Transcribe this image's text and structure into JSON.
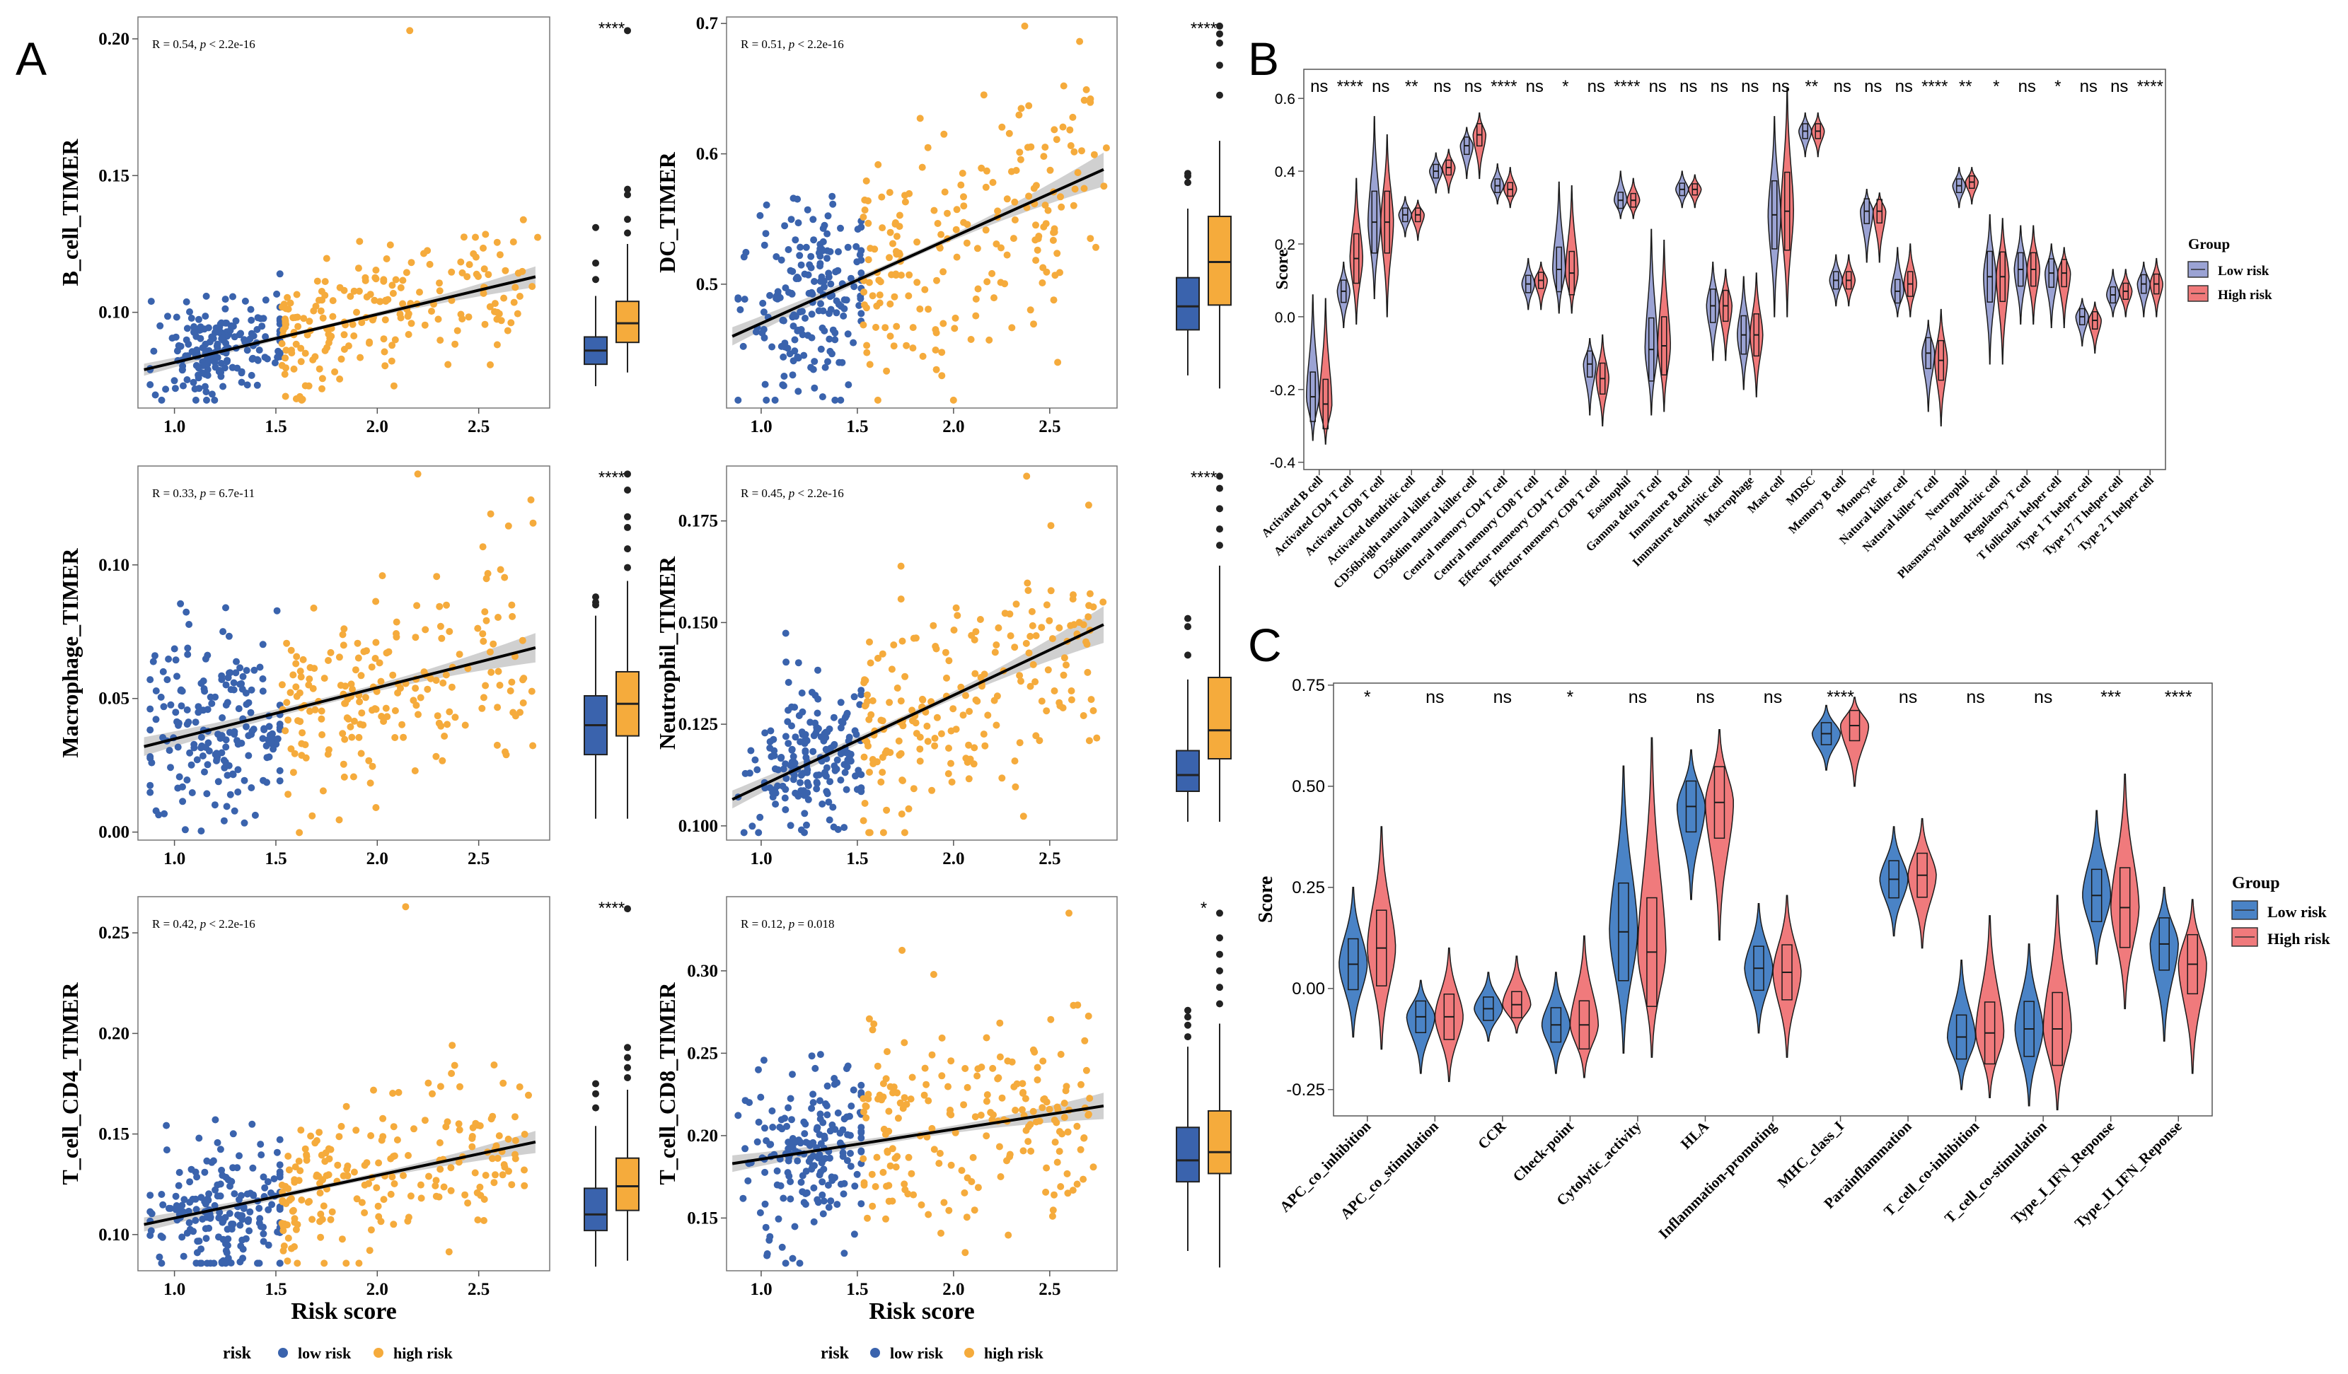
{
  "panel_labels": {
    "A": "A",
    "B": "B",
    "C": "C"
  },
  "colors": {
    "low": "#3a63ad",
    "high": "#f5ab3c",
    "vio_low": "#9ba3d4",
    "vio_high": "#f0797a",
    "c_low": "#4a83c6",
    "c_high": "#f07a7c",
    "ci": "#c8c8c8"
  },
  "chart_data": [
    {
      "id": "A1",
      "type": "scatter",
      "ylabel": "B_cell_TIMER",
      "annotation": {
        "r": "R = 0.54, ",
        "p_label": "p",
        "p_value": " < 2.2e-16"
      },
      "xlim": [
        0.82,
        2.85
      ],
      "ylim": [
        0.065,
        0.208
      ],
      "xticks": [
        1.0,
        1.5,
        2.0,
        2.5
      ],
      "xtick_labels": [
        "1.0",
        "1.5",
        "2.0",
        "2.5"
      ],
      "yticks": [
        0.1,
        0.15,
        0.2
      ],
      "ytick_labels": [
        "0.10",
        "0.15",
        "0.20"
      ],
      "fit": [
        [
          0.85,
          0.079
        ],
        [
          2.78,
          0.113
        ]
      ],
      "ci_halfwidth": [
        0.0022,
        0.0007,
        0.0038
      ],
      "low_center": [
        1.23,
        0.088
      ],
      "low_spread": [
        0.17,
        0.009
      ],
      "high_center": [
        1.95,
        0.098
      ],
      "high_spread": [
        0.27,
        0.011
      ],
      "outlier_high": [
        2.16,
        0.203
      ],
      "box": {
        "sig": "****",
        "low": {
          "min": 0.073,
          "q1": 0.081,
          "median": 0.086,
          "q3": 0.091,
          "max": 0.106,
          "outliers": [
            0.112,
            0.118,
            0.131
          ]
        },
        "high": {
          "min": 0.078,
          "q1": 0.089,
          "median": 0.096,
          "q3": 0.104,
          "max": 0.125,
          "outliers": [
            0.129,
            0.134,
            0.143,
            0.145,
            0.203
          ]
        }
      }
    },
    {
      "id": "A2",
      "type": "scatter",
      "ylabel": "DC_TIMER",
      "annotation": {
        "r": "R = 0.51, ",
        "p_label": "p",
        "p_value": " < 2.2e-16"
      },
      "xlim": [
        0.82,
        2.85
      ],
      "ylim": [
        0.405,
        0.705
      ],
      "xticks": [
        1.0,
        1.5,
        2.0,
        2.5
      ],
      "xtick_labels": [
        "1.0",
        "1.5",
        "2.0",
        "2.5"
      ],
      "yticks": [
        0.5,
        0.6,
        0.7
      ],
      "ytick_labels": [
        "0.5",
        "0.6",
        "0.7"
      ],
      "fit": [
        [
          0.85,
          0.46
        ],
        [
          2.78,
          0.588
        ]
      ],
      "ci_halfwidth": [
        0.007,
        0.002,
        0.013
      ],
      "low_center": [
        1.24,
        0.49
      ],
      "low_spread": [
        0.17,
        0.035
      ],
      "high_center": [
        1.95,
        0.53
      ],
      "high_spread": [
        0.27,
        0.048
      ],
      "outlier_high": [
        2.37,
        0.698
      ],
      "box": {
        "sig": "****",
        "low": {
          "min": 0.43,
          "q1": 0.465,
          "median": 0.483,
          "q3": 0.505,
          "max": 0.558,
          "outliers": [
            0.578,
            0.583,
            0.585
          ]
        },
        "high": {
          "min": 0.42,
          "q1": 0.484,
          "median": 0.517,
          "q3": 0.552,
          "max": 0.61,
          "outliers": [
            0.645,
            0.668,
            0.685,
            0.692,
            0.698
          ]
        }
      }
    },
    {
      "id": "A3",
      "type": "scatter",
      "ylabel": "Macrophage_TIMER",
      "annotation": {
        "r": "R = 0.33, ",
        "p_label": "p",
        "p_value": " = 6.7e-11"
      },
      "xlim": [
        0.82,
        2.85
      ],
      "ylim": [
        -0.003,
        0.137
      ],
      "xticks": [
        1.0,
        1.5,
        2.0,
        2.5
      ],
      "xtick_labels": [
        "1.0",
        "1.5",
        "2.0",
        "2.5"
      ],
      "yticks": [
        0.0,
        0.05,
        0.1
      ],
      "ytick_labels": [
        "0.00",
        "0.05",
        "0.10"
      ],
      "fit": [
        [
          0.85,
          0.032
        ],
        [
          2.78,
          0.069
        ]
      ],
      "ci_halfwidth": [
        0.0035,
        0.0012,
        0.0055
      ],
      "low_center": [
        1.23,
        0.041
      ],
      "low_spread": [
        0.17,
        0.017
      ],
      "high_center": [
        1.95,
        0.049
      ],
      "high_spread": [
        0.27,
        0.019
      ],
      "outlier_high": [
        2.2,
        0.134
      ],
      "box": {
        "sig": "****",
        "low": {
          "min": 0.005,
          "q1": 0.029,
          "median": 0.04,
          "q3": 0.051,
          "max": 0.081,
          "outliers": [
            0.085,
            0.086,
            0.088
          ]
        },
        "high": {
          "min": 0.005,
          "q1": 0.036,
          "median": 0.048,
          "q3": 0.06,
          "max": 0.094,
          "outliers": [
            0.099,
            0.106,
            0.114,
            0.118,
            0.128,
            0.134
          ]
        }
      }
    },
    {
      "id": "A4",
      "type": "scatter",
      "ylabel": "Neutrophil_TIMER",
      "annotation": {
        "r": "R = 0.45, ",
        "p_label": "p",
        "p_value": " < 2.2e-16"
      },
      "xlim": [
        0.82,
        2.85
      ],
      "ylim": [
        0.0965,
        0.1885
      ],
      "xticks": [
        1.0,
        1.5,
        2.0,
        2.5
      ],
      "xtick_labels": [
        "1.0",
        "1.5",
        "2.0",
        "2.5"
      ],
      "yticks": [
        0.1,
        0.125,
        0.15,
        0.175
      ],
      "ytick_labels": [
        "0.100",
        "0.125",
        "0.150",
        "0.175"
      ],
      "fit": [
        [
          0.85,
          0.1065
        ],
        [
          2.78,
          0.1495
        ]
      ],
      "ci_halfwidth": [
        0.0022,
        0.0008,
        0.0045
      ],
      "low_center": [
        1.25,
        0.117
      ],
      "low_spread": [
        0.16,
        0.0085
      ],
      "high_center": [
        1.95,
        0.128
      ],
      "high_spread": [
        0.27,
        0.012
      ],
      "outlier_high": [
        2.38,
        0.186
      ],
      "box": {
        "sig": "****",
        "low": {
          "min": 0.101,
          "q1": 0.1085,
          "median": 0.1125,
          "q3": 0.1185,
          "max": 0.136,
          "outliers": [
            0.142,
            0.149,
            0.151
          ]
        },
        "high": {
          "min": 0.101,
          "q1": 0.1165,
          "median": 0.1235,
          "q3": 0.1365,
          "max": 0.164,
          "outliers": [
            0.169,
            0.173,
            0.178,
            0.183,
            0.186
          ]
        }
      }
    },
    {
      "id": "A5",
      "type": "scatter",
      "ylabel": "T_cell_CD4_TIMER",
      "xlabel": "Risk score",
      "annotation": {
        "r": "R = 0.42, ",
        "p_label": "p",
        "p_value": " < 2.2e-16"
      },
      "xlim": [
        0.82,
        2.85
      ],
      "ylim": [
        0.082,
        0.268
      ],
      "xticks": [
        1.0,
        1.5,
        2.0,
        2.5
      ],
      "xtick_labels": [
        "1.0",
        "1.5",
        "2.0",
        "2.5"
      ],
      "yticks": [
        0.1,
        0.15,
        0.2,
        0.25
      ],
      "ytick_labels": [
        "0.10",
        "0.15",
        "0.20",
        "0.25"
      ],
      "fit": [
        [
          0.85,
          0.105
        ],
        [
          2.78,
          0.146
        ]
      ],
      "ci_halfwidth": [
        0.0035,
        0.0012,
        0.0055
      ],
      "low_center": [
        1.24,
        0.113
      ],
      "low_spread": [
        0.17,
        0.016
      ],
      "high_center": [
        1.95,
        0.128
      ],
      "high_spread": [
        0.27,
        0.02
      ],
      "outlier_high": [
        2.14,
        0.263
      ],
      "box": {
        "sig": "****",
        "low": {
          "min": 0.084,
          "q1": 0.102,
          "median": 0.11,
          "q3": 0.123,
          "max": 0.154,
          "outliers": [
            0.163,
            0.17,
            0.175
          ]
        },
        "high": {
          "min": 0.087,
          "q1": 0.112,
          "median": 0.124,
          "q3": 0.138,
          "max": 0.172,
          "outliers": [
            0.178,
            0.183,
            0.188,
            0.193,
            0.262
          ]
        }
      }
    },
    {
      "id": "A6",
      "type": "scatter",
      "ylabel": "T_cell_CD8_TIMER",
      "xlabel": "Risk score",
      "annotation": {
        "r": "R = 0.12, ",
        "p_label": "p",
        "p_value": " = 0.018"
      },
      "xlim": [
        0.82,
        2.85
      ],
      "ylim": [
        0.118,
        0.345
      ],
      "xticks": [
        1.0,
        1.5,
        2.0,
        2.5
      ],
      "xtick_labels": [
        "1.0",
        "1.5",
        "2.0",
        "2.5"
      ],
      "yticks": [
        0.15,
        0.2,
        0.25,
        0.3
      ],
      "ytick_labels": [
        "0.15",
        "0.20",
        "0.25",
        "0.30"
      ],
      "fit": [
        [
          0.85,
          0.183
        ],
        [
          2.78,
          0.218
        ]
      ],
      "ci_halfwidth": [
        0.005,
        0.002,
        0.008
      ],
      "low_center": [
        1.24,
        0.19
      ],
      "low_spread": [
        0.17,
        0.028
      ],
      "high_center": [
        1.95,
        0.199
      ],
      "high_spread": [
        0.27,
        0.032
      ],
      "outlier_high": [
        2.6,
        0.335
      ],
      "box": {
        "sig": "*",
        "low": {
          "min": 0.13,
          "q1": 0.172,
          "median": 0.185,
          "q3": 0.205,
          "max": 0.254,
          "outliers": [
            0.26,
            0.267,
            0.272,
            0.276
          ]
        },
        "high": {
          "min": 0.12,
          "q1": 0.177,
          "median": 0.19,
          "q3": 0.215,
          "max": 0.268,
          "outliers": [
            0.28,
            0.29,
            0.3,
            0.31,
            0.32,
            0.335
          ]
        }
      }
    },
    {
      "id": "B",
      "type": "violin",
      "ylabel": "Score",
      "ylim": [
        -0.42,
        0.68
      ],
      "yticks": [
        -0.4,
        -0.2,
        0.0,
        0.2,
        0.4,
        0.6
      ],
      "ytick_labels": [
        "-0.4",
        "-0.2",
        "0.0",
        "0.2",
        "0.4",
        "0.6"
      ],
      "categories": [
        "Activated B cell",
        "Activated CD4 T cell",
        "Activated CD8 T cell",
        "Activated dendritic cell",
        "CD56bright natural killer cell",
        "CD56dim natural killer cell",
        "Central memory CD4 T cell",
        "Central memory CD8 T cell",
        "Effector memeory CD4 T cell",
        "Effector memeory CD8 T cell",
        "Eosinophil",
        "Gamma delta T cell",
        "Immature  B cell",
        "Immature dendritic cell",
        "Macrophage",
        "Mast cell",
        "MDSC",
        "Memory B cell",
        "Monocyte",
        "Natural killer cell",
        "Natural killer T cell",
        "Neutrophil",
        "Plasmacytoid dendritic cell",
        "Regulatory T cell",
        "T follicular helper cell",
        "Type 1 T helper cell",
        "Type 17 T helper cell",
        "Type 2 T helper cell"
      ],
      "significance": [
        "ns",
        "****",
        "ns",
        "**",
        "ns",
        "ns",
        "****",
        "ns",
        "*",
        "ns",
        "****",
        "ns",
        "ns",
        "ns",
        "ns",
        "ns",
        "**",
        "ns",
        "ns",
        "ns",
        "****",
        "**",
        "*",
        "ns",
        "*",
        "ns",
        "ns",
        "****"
      ],
      "low_median": [
        -0.22,
        0.07,
        0.26,
        0.28,
        0.4,
        0.47,
        0.36,
        0.09,
        0.13,
        -0.13,
        0.32,
        -0.09,
        0.35,
        0.03,
        -0.05,
        0.28,
        0.51,
        0.1,
        0.29,
        0.07,
        -0.1,
        0.36,
        0.11,
        0.13,
        0.12,
        0.0,
        0.06,
        0.09
      ],
      "high_median": [
        -0.24,
        0.16,
        0.26,
        0.28,
        0.41,
        0.5,
        0.35,
        0.1,
        0.12,
        -0.17,
        0.32,
        -0.08,
        0.35,
        0.03,
        -0.05,
        0.29,
        0.51,
        0.1,
        0.29,
        0.09,
        -0.12,
        0.37,
        0.11,
        0.13,
        0.12,
        -0.01,
        0.07,
        0.09
      ],
      "low_min": [
        -0.34,
        -0.03,
        0.05,
        0.22,
        0.34,
        0.38,
        0.31,
        0.02,
        0.01,
        -0.27,
        0.27,
        -0.27,
        0.3,
        -0.12,
        -0.2,
        0.0,
        0.44,
        0.03,
        0.15,
        0.0,
        -0.26,
        0.3,
        -0.13,
        -0.02,
        -0.03,
        -0.08,
        0.0,
        0.0
      ],
      "low_max": [
        0.06,
        0.15,
        0.55,
        0.33,
        0.45,
        0.52,
        0.42,
        0.16,
        0.37,
        -0.06,
        0.4,
        0.24,
        0.4,
        0.15,
        0.11,
        0.55,
        0.56,
        0.17,
        0.35,
        0.19,
        -0.01,
        0.41,
        0.28,
        0.25,
        0.2,
        0.05,
        0.13,
        0.15
      ],
      "high_min": [
        -0.35,
        -0.02,
        0.0,
        0.21,
        0.34,
        0.38,
        0.3,
        0.02,
        0.01,
        -0.3,
        0.27,
        -0.26,
        0.3,
        -0.12,
        -0.22,
        0.0,
        0.44,
        0.03,
        0.15,
        0.0,
        -0.3,
        0.31,
        -0.13,
        -0.02,
        -0.03,
        -0.1,
        0.0,
        0.0
      ],
      "high_max": [
        0.05,
        0.38,
        0.5,
        0.32,
        0.46,
        0.56,
        0.41,
        0.15,
        0.36,
        -0.05,
        0.38,
        0.21,
        0.39,
        0.13,
        0.12,
        0.63,
        0.56,
        0.17,
        0.34,
        0.2,
        0.02,
        0.41,
        0.27,
        0.25,
        0.19,
        0.04,
        0.13,
        0.16
      ],
      "legend": {
        "title": "Group",
        "low": "Low risk",
        "high": "High risk"
      }
    },
    {
      "id": "C",
      "type": "violin",
      "ylabel": "Score",
      "ylim": [
        -0.315,
        0.755
      ],
      "yticks": [
        -0.25,
        0.0,
        0.25,
        0.5,
        0.75
      ],
      "ytick_labels": [
        "-0.25",
        "0.00",
        "0.25",
        "0.50",
        "0.75"
      ],
      "categories": [
        "APC_co_inhibition",
        "APC_co_stimulation",
        "CCR",
        "Check-point",
        "Cytolytic_activity",
        "HLA",
        "Inflammation-promoting",
        "MHC_class_I",
        "Parainflammation",
        "T_cell_co-inhibition",
        "T_cell_co-stimulation",
        "Type_I_IFN_Reponse",
        "Type_II_IFN_Reponse"
      ],
      "significance": [
        "*",
        "ns",
        "ns",
        "*",
        "ns",
        "ns",
        "ns",
        "****",
        "ns",
        "ns",
        "ns",
        "***",
        "****"
      ],
      "low_median": [
        0.06,
        -0.07,
        -0.05,
        -0.09,
        0.14,
        0.45,
        0.05,
        0.63,
        0.27,
        -0.12,
        -0.1,
        0.23,
        0.11
      ],
      "high_median": [
        0.1,
        -0.07,
        -0.04,
        -0.09,
        0.09,
        0.46,
        0.04,
        0.65,
        0.28,
        -0.11,
        -0.1,
        0.2,
        0.06
      ],
      "low_min": [
        -0.12,
        -0.21,
        -0.13,
        -0.21,
        -0.16,
        0.22,
        -0.11,
        0.54,
        0.13,
        -0.25,
        -0.29,
        0.06,
        -0.13
      ],
      "low_max": [
        0.25,
        0.02,
        0.04,
        0.04,
        0.55,
        0.59,
        0.21,
        0.7,
        0.4,
        0.07,
        0.11,
        0.44,
        0.25
      ],
      "high_min": [
        -0.15,
        -0.23,
        -0.11,
        -0.22,
        -0.17,
        0.12,
        -0.17,
        0.5,
        0.1,
        -0.27,
        -0.3,
        -0.05,
        -0.21
      ],
      "high_max": [
        0.4,
        0.1,
        0.08,
        0.13,
        0.62,
        0.64,
        0.23,
        0.72,
        0.42,
        0.18,
        0.23,
        0.53,
        0.22
      ],
      "legend": {
        "title": "Group",
        "low": "Low risk",
        "high": "High risk"
      }
    }
  ],
  "bottom_legend": {
    "title": "risk",
    "low": "low risk",
    "high": "high risk"
  }
}
